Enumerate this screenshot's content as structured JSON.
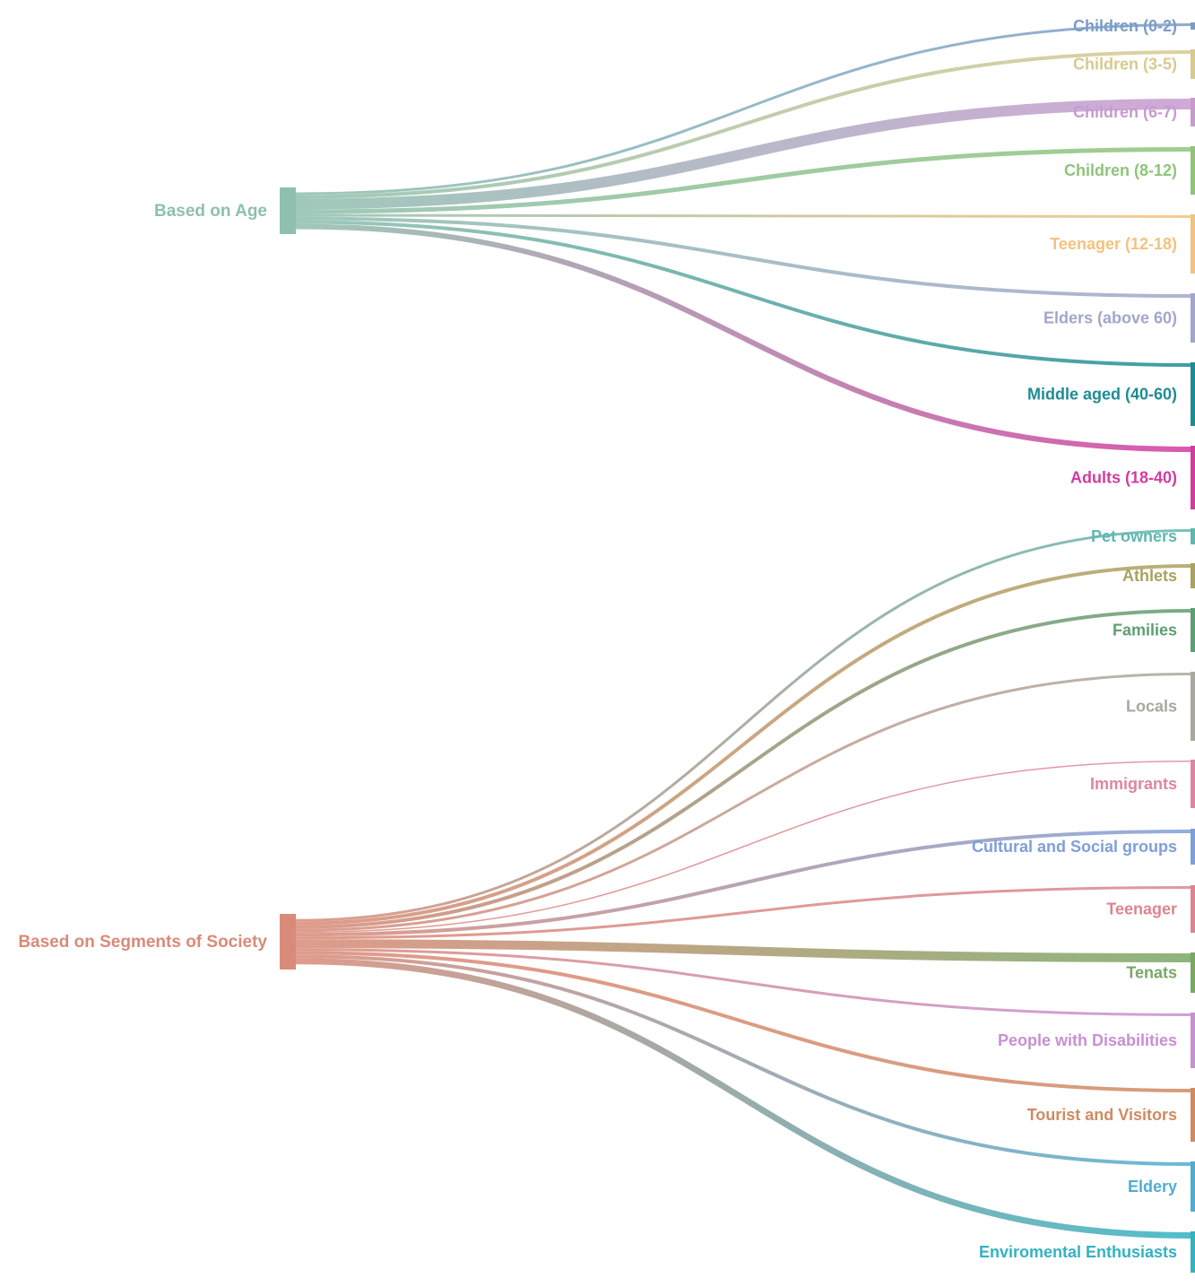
{
  "groups": [
    {
      "label": "Based on Age",
      "color": "#8fbfae",
      "targets": [
        {
          "label": "Children (0-2)",
          "color": "#7b9cc8"
        },
        {
          "label": "Children (3-5)",
          "color": "#d9c98f"
        },
        {
          "label": "Children (6-7)",
          "color": "#c89ad0"
        },
        {
          "label": "Children (8-12)",
          "color": "#8fc47a"
        },
        {
          "label": "Teenager (12-18)",
          "color": "#f2c27f"
        },
        {
          "label": "Elders (above 60)",
          "color": "#a2a6cc"
        },
        {
          "label": "Middle aged (40-60)",
          "color": "#1e8c94"
        },
        {
          "label": "Adults (18-40)",
          "color": "#d23c9f"
        }
      ]
    },
    {
      "label": "Based on Segments of Society",
      "color": "#d98a78",
      "targets": [
        {
          "label": "Pet owners",
          "color": "#5fb8b0"
        },
        {
          "label": "Athlets",
          "color": "#a9a35f"
        },
        {
          "label": "Families",
          "color": "#5e9e72"
        },
        {
          "label": "Locals",
          "color": "#aaa89e"
        },
        {
          "label": "Immigrants",
          "color": "#dc86a2"
        },
        {
          "label": "Cultural and Social groups",
          "color": "#7f9fd8"
        },
        {
          "label": "Teenager",
          "color": "#dc8590"
        },
        {
          "label": "Tenats",
          "color": "#79a865"
        },
        {
          "label": "People with Disabilities",
          "color": "#c890d2"
        },
        {
          "label": "Tourist and Visitors",
          "color": "#d08a62"
        },
        {
          "label": "Eldery",
          "color": "#4faed0"
        },
        {
          "label": "Enviromental Enthusiasts",
          "color": "#33b2c2"
        }
      ]
    }
  ]
}
